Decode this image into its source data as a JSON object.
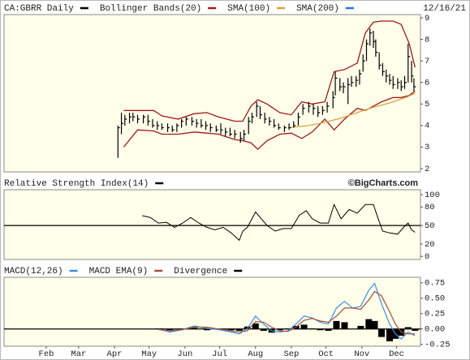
{
  "chart_data": [
    {
      "type": "ohlc",
      "title": "CA:GBRR Daily",
      "date": "12/16/21",
      "color": "#000000",
      "x": [
        93,
        96,
        99,
        103,
        106,
        110,
        115,
        119,
        123,
        127,
        131,
        136,
        140,
        144,
        148,
        152,
        157,
        161,
        165,
        169,
        173,
        178,
        182,
        186,
        190,
        194,
        199,
        202,
        206,
        209,
        213,
        216,
        220,
        224,
        228,
        232,
        237,
        241,
        245,
        249,
        253,
        258,
        262,
        266,
        270,
        274,
        279,
        281,
        285,
        288,
        292,
        295,
        299,
        302,
        305,
        308,
        311,
        314,
        316,
        319,
        322,
        325,
        328,
        331,
        335,
        338,
        341,
        344,
        347,
        349
      ],
      "high": [
        4.0,
        4.6,
        4.5,
        4.6,
        4.6,
        4.5,
        4.5,
        4.5,
        4.3,
        4.2,
        4.1,
        4.1,
        4.0,
        4.1,
        4.3,
        4.4,
        4.4,
        4.3,
        4.3,
        4.2,
        4.1,
        4.0,
        4.1,
        3.9,
        3.9,
        3.8,
        3.7,
        3.8,
        4.4,
        4.6,
        5.1,
        4.9,
        4.6,
        4.4,
        4.3,
        4.1,
        4.0,
        4.1,
        4.2,
        4.6,
        5.0,
        5.1,
        5.0,
        4.9,
        4.9,
        5.1,
        5.6,
        6.5,
        6.2,
        6.0,
        6.2,
        6.3,
        6.3,
        6.6,
        7.3,
        8.0,
        8.5,
        8.4,
        8.0,
        7.4,
        6.9,
        6.6,
        6.4,
        6.3,
        6.2,
        6.1,
        6.3,
        7.8,
        7.0,
        6.2
      ],
      "low": [
        2.5,
        3.6,
        4.0,
        4.1,
        4.2,
        4.1,
        4.1,
        4.0,
        3.9,
        3.8,
        3.8,
        3.7,
        3.7,
        3.7,
        3.9,
        4.0,
        4.0,
        3.9,
        3.9,
        3.8,
        3.7,
        3.7,
        3.6,
        3.5,
        3.5,
        3.4,
        3.2,
        3.3,
        3.6,
        4.1,
        4.4,
        4.3,
        4.1,
        4.0,
        3.9,
        3.8,
        3.7,
        3.8,
        3.9,
        4.0,
        4.5,
        4.6,
        4.5,
        4.4,
        4.5,
        4.6,
        4.8,
        5.4,
        5.6,
        5.5,
        5.0,
        5.8,
        5.8,
        5.9,
        6.5,
        7.0,
        7.7,
        7.6,
        7.2,
        6.6,
        6.3,
        6.0,
        5.9,
        5.7,
        5.7,
        5.6,
        5.7,
        6.0,
        6.0,
        5.6
      ],
      "close": [
        3.9,
        4.1,
        4.3,
        4.4,
        4.4,
        4.3,
        4.4,
        4.2,
        4.0,
        4.0,
        3.9,
        3.9,
        3.8,
        4.0,
        4.2,
        4.3,
        4.2,
        4.1,
        4.0,
        4.0,
        3.9,
        3.8,
        3.8,
        3.7,
        3.6,
        3.6,
        3.4,
        3.6,
        4.2,
        4.4,
        4.9,
        4.5,
        4.3,
        4.2,
        4.0,
        3.9,
        3.9,
        3.9,
        4.0,
        4.4,
        4.8,
        4.9,
        4.8,
        4.6,
        4.7,
        4.9,
        5.3,
        6.2,
        5.8,
        5.8,
        5.9,
        6.0,
        6.1,
        6.4,
        7.0,
        7.8,
        8.3,
        7.9,
        7.4,
        6.8,
        6.5,
        6.3,
        6.1,
        5.9,
        6.0,
        5.8,
        6.0,
        7.2,
        6.3,
        5.8
      ],
      "series": [
        {
          "name": "Bollinger Bands(20)",
          "color": "#a01818",
          "x": [
            98,
            110,
            124,
            131,
            145,
            159,
            170,
            180,
            194,
            201,
            208,
            214,
            222,
            233,
            243,
            252,
            261,
            272,
            280,
            289,
            300,
            307,
            314,
            321,
            331,
            338,
            345,
            350
          ],
          "upper": [
            4.7,
            4.7,
            4.7,
            4.45,
            4.3,
            4.55,
            4.6,
            4.4,
            4.2,
            4.2,
            4.9,
            5.2,
            5.0,
            4.6,
            4.5,
            5.1,
            5.0,
            5.1,
            6.5,
            6.6,
            6.9,
            8.3,
            8.8,
            8.85,
            8.85,
            8.7,
            7.8,
            6.7
          ],
          "lower": [
            3.0,
            3.8,
            3.75,
            3.6,
            3.6,
            3.7,
            3.65,
            3.6,
            3.35,
            3.3,
            3.2,
            2.9,
            3.3,
            3.6,
            3.65,
            3.4,
            3.7,
            4.3,
            3.8,
            4.3,
            4.8,
            4.7,
            4.9,
            5.1,
            5.3,
            5.3,
            5.4,
            5.6
          ]
        },
        {
          "name": "SMA(100)",
          "color": "#d9a441",
          "x": [
            240,
            258,
            272,
            286,
            300,
            314,
            328,
            342,
            350
          ],
          "values": [
            3.9,
            4.0,
            4.15,
            4.35,
            4.6,
            4.85,
            5.05,
            5.3,
            5.5
          ]
        },
        {
          "name": "SMA(200)",
          "color": "#2a6ef0",
          "x": [],
          "values": []
        }
      ],
      "xlim": [
        -5.5,
        354.7
      ],
      "ylim": [
        1.85,
        9.15
      ],
      "yticks": [
        2,
        3,
        4,
        5,
        6,
        7,
        8,
        9
      ]
    },
    {
      "type": "line",
      "title": "Relative Strength Index(14)",
      "credit": "©BigCharts.com",
      "color": "#000000",
      "x": [
        114,
        121,
        128,
        135,
        142,
        149,
        156,
        163,
        170,
        177,
        184,
        191,
        198,
        201,
        205,
        212,
        217,
        222,
        229,
        236,
        243,
        250,
        256,
        261,
        268,
        275,
        280,
        286,
        293,
        300,
        307,
        314,
        317,
        322,
        328,
        335,
        340,
        344,
        347,
        350
      ],
      "values": [
        66,
        63,
        54,
        55,
        47,
        54,
        63,
        54,
        47,
        43,
        47,
        38,
        26,
        41,
        47,
        72,
        61,
        50,
        41,
        45,
        45,
        67,
        74,
        61,
        54,
        54,
        84,
        61,
        76,
        70,
        84,
        84,
        67,
        41,
        38,
        36,
        47,
        54,
        43,
        39
      ],
      "refline": 50,
      "xlim": [
        -5.5,
        354.7
      ],
      "ylim": [
        -5,
        108
      ],
      "yticks": [
        0,
        20,
        50,
        80,
        100
      ]
    },
    {
      "type": "macd",
      "x": [
        128,
        138,
        149,
        159,
        170,
        180,
        191,
        198,
        205,
        212,
        219,
        226,
        233,
        240,
        247,
        254,
        261,
        268,
        275,
        282,
        289,
        296,
        303,
        310,
        315,
        321,
        328,
        333,
        338,
        344,
        350
      ],
      "series": [
        {
          "name": "MACD(12,26)",
          "color": "#3a8ee6",
          "values": [
            0,
            -0.05,
            -0.01,
            0.05,
            0.01,
            -0.01,
            -0.05,
            -0.08,
            0.01,
            0.21,
            0.08,
            -0.03,
            -0.05,
            -0.03,
            0.08,
            0.21,
            0.18,
            0.11,
            0.08,
            0.34,
            0.45,
            0.34,
            0.37,
            0.63,
            0.74,
            0.41,
            0.08,
            -0.08,
            -0.16,
            -0.05,
            -0.11
          ]
        },
        {
          "name": "MACD EMA(9)",
          "color": "#a0503a",
          "values": [
            -0.01,
            -0.03,
            -0.01,
            0.03,
            0.03,
            0,
            -0.03,
            -0.05,
            -0.03,
            0.12,
            0.11,
            0.03,
            -0.03,
            -0.04,
            0.03,
            0.14,
            0.17,
            0.13,
            0.11,
            0.21,
            0.34,
            0.34,
            0.32,
            0.47,
            0.61,
            0.54,
            0.28,
            0.08,
            -0.05,
            -0.08,
            -0.08
          ]
        },
        {
          "name": "Divergence",
          "color": "#000000",
          "values": [
            0.01,
            -0.02,
            0,
            0.02,
            -0.02,
            -0.01,
            -0.02,
            -0.03,
            0.04,
            0.09,
            -0.03,
            -0.06,
            -0.02,
            0.01,
            0.05,
            0.07,
            0.01,
            -0.02,
            -0.03,
            0.13,
            0.11,
            0,
            0.05,
            0.16,
            0.13,
            -0.13,
            -0.2,
            -0.16,
            -0.11,
            0.03,
            -0.03
          ]
        }
      ],
      "refline": 0,
      "xlim": [
        -5.5,
        354.7
      ],
      "ylim": [
        -0.28,
        0.84
      ],
      "yticks": [
        -0.25,
        {
          "value": 0,
          "label": "0.00"
        },
        0.25,
        {
          "value": 0.5,
          "label": "0.50"
        },
        0.75
      ],
      "xticks": [
        {
          "value": 31,
          "label": "Feb"
        },
        {
          "value": 59,
          "label": "Mar"
        },
        {
          "value": 90,
          "label": "Apr"
        },
        {
          "value": 120,
          "label": "May"
        },
        {
          "value": 151,
          "label": "Jun"
        },
        {
          "value": 181,
          "label": "Jul"
        },
        {
          "value": 212,
          "label": "Aug"
        },
        {
          "value": 243,
          "label": "Sep"
        },
        {
          "value": 273,
          "label": "Oct"
        },
        {
          "value": 304,
          "label": "Nov"
        },
        {
          "value": 334,
          "label": "Dec"
        }
      ]
    }
  ]
}
